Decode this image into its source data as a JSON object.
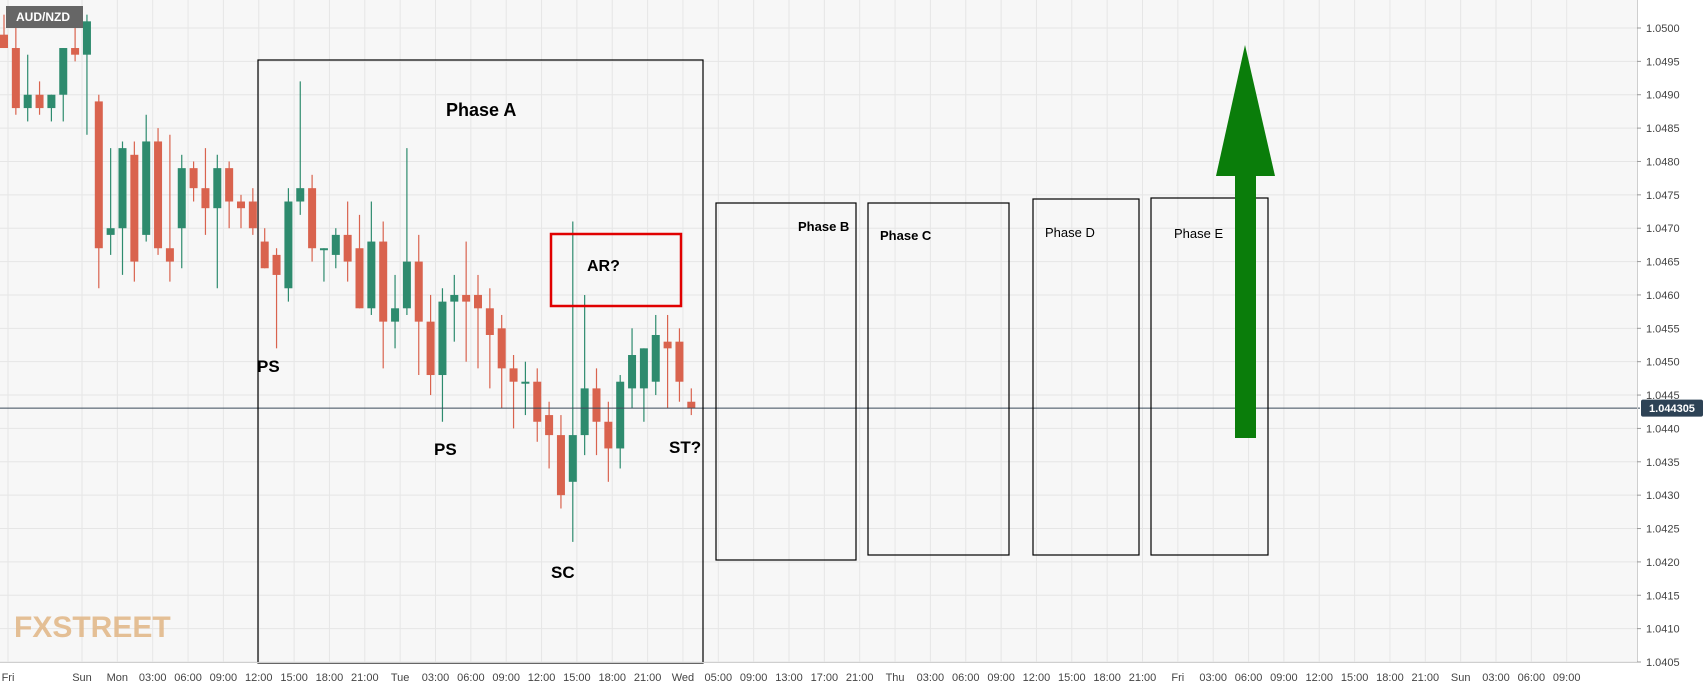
{
  "chart_data": {
    "type": "candlestick",
    "symbol": "AUD/NZD",
    "last_price": "1.044305",
    "y_range": [
      1.0405,
      1.0502
    ],
    "y_ticks": [
      "1.0500",
      "1.0495",
      "1.0490",
      "1.0485",
      "1.0480",
      "1.0475",
      "1.0470",
      "1.0465",
      "1.0460",
      "1.0455",
      "1.0450",
      "1.0445",
      "1.0440",
      "1.0435",
      "1.0430",
      "1.0425",
      "1.0420",
      "1.0415",
      "1.0410",
      "1.0405"
    ],
    "x_ticks": [
      "Fri",
      "Sun",
      "Mon",
      "03:00",
      "06:00",
      "09:00",
      "12:00",
      "15:00",
      "18:00",
      "21:00",
      "Tue",
      "03:00",
      "06:00",
      "09:00",
      "12:00",
      "15:00",
      "18:00",
      "21:00",
      "Wed",
      "05:00",
      "09:00",
      "13:00",
      "17:00",
      "21:00",
      "Thu",
      "03:00",
      "06:00",
      "09:00",
      "12:00",
      "15:00",
      "18:00",
      "21:00",
      "Fri",
      "03:00",
      "06:00",
      "09:00",
      "12:00",
      "15:00",
      "18:00",
      "21:00",
      "Sun",
      "03:00",
      "06:00",
      "09:00"
    ],
    "candles": [
      {
        "o": 1.0499,
        "h": 1.0502,
        "l": 1.0497,
        "c": 1.0497
      },
      {
        "o": 1.0497,
        "h": 1.0502,
        "l": 1.0487,
        "c": 1.0488
      },
      {
        "o": 1.0488,
        "h": 1.0496,
        "l": 1.0486,
        "c": 1.049
      },
      {
        "o": 1.049,
        "h": 1.0492,
        "l": 1.0487,
        "c": 1.0488
      },
      {
        "o": 1.0488,
        "h": 1.049,
        "l": 1.0486,
        "c": 1.049
      },
      {
        "o": 1.049,
        "h": 1.0497,
        "l": 1.0486,
        "c": 1.0497
      },
      {
        "o": 1.0497,
        "h": 1.0501,
        "l": 1.0495,
        "c": 1.0496
      },
      {
        "o": 1.0496,
        "h": 1.0502,
        "l": 1.0484,
        "c": 1.0501
      },
      {
        "o": 1.0489,
        "h": 1.049,
        "l": 1.0461,
        "c": 1.0467
      },
      {
        "o": 1.0469,
        "h": 1.0482,
        "l": 1.0466,
        "c": 1.047
      },
      {
        "o": 1.047,
        "h": 1.0483,
        "l": 1.0463,
        "c": 1.0482
      },
      {
        "o": 1.0481,
        "h": 1.0483,
        "l": 1.0462,
        "c": 1.0465
      },
      {
        "o": 1.0469,
        "h": 1.0487,
        "l": 1.0468,
        "c": 1.0483
      },
      {
        "o": 1.0483,
        "h": 1.0485,
        "l": 1.0466,
        "c": 1.0467
      },
      {
        "o": 1.0467,
        "h": 1.0484,
        "l": 1.0462,
        "c": 1.0465
      },
      {
        "o": 1.047,
        "h": 1.0481,
        "l": 1.0464,
        "c": 1.0479
      },
      {
        "o": 1.0479,
        "h": 1.048,
        "l": 1.0474,
        "c": 1.0476
      },
      {
        "o": 1.0476,
        "h": 1.0482,
        "l": 1.0469,
        "c": 1.0473
      },
      {
        "o": 1.0473,
        "h": 1.0481,
        "l": 1.0461,
        "c": 1.0479
      },
      {
        "o": 1.0479,
        "h": 1.048,
        "l": 1.047,
        "c": 1.0474
      },
      {
        "o": 1.0474,
        "h": 1.0475,
        "l": 1.047,
        "c": 1.0473
      },
      {
        "o": 1.0474,
        "h": 1.0476,
        "l": 1.0469,
        "c": 1.047
      },
      {
        "o": 1.0468,
        "h": 1.047,
        "l": 1.0464,
        "c": 1.0464
      },
      {
        "o": 1.0466,
        "h": 1.0467,
        "l": 1.0452,
        "c": 1.0463
      },
      {
        "o": 1.0461,
        "h": 1.0476,
        "l": 1.0459,
        "c": 1.0474
      },
      {
        "o": 1.0474,
        "h": 1.0492,
        "l": 1.0472,
        "c": 1.0476
      },
      {
        "o": 1.0476,
        "h": 1.0478,
        "l": 1.0465,
        "c": 1.0467
      },
      {
        "o": 1.0467,
        "h": 1.0467,
        "l": 1.0462,
        "c": 1.0467
      },
      {
        "o": 1.0466,
        "h": 1.047,
        "l": 1.0464,
        "c": 1.0469
      },
      {
        "o": 1.0469,
        "h": 1.0474,
        "l": 1.0462,
        "c": 1.0465
      },
      {
        "o": 1.0467,
        "h": 1.0472,
        "l": 1.0458,
        "c": 1.0458
      },
      {
        "o": 1.0458,
        "h": 1.0474,
        "l": 1.0457,
        "c": 1.0468
      },
      {
        "o": 1.0468,
        "h": 1.0471,
        "l": 1.0449,
        "c": 1.0456
      },
      {
        "o": 1.0456,
        "h": 1.0463,
        "l": 1.0452,
        "c": 1.0458
      },
      {
        "o": 1.0458,
        "h": 1.0482,
        "l": 1.0457,
        "c": 1.0465
      },
      {
        "o": 1.0465,
        "h": 1.0469,
        "l": 1.0448,
        "c": 1.0456
      },
      {
        "o": 1.0456,
        "h": 1.046,
        "l": 1.0445,
        "c": 1.0448
      },
      {
        "o": 1.0448,
        "h": 1.0461,
        "l": 1.0441,
        "c": 1.0459
      },
      {
        "o": 1.0459,
        "h": 1.0463,
        "l": 1.0453,
        "c": 1.046
      },
      {
        "o": 1.046,
        "h": 1.0468,
        "l": 1.045,
        "c": 1.0459
      },
      {
        "o": 1.046,
        "h": 1.0463,
        "l": 1.0449,
        "c": 1.0458
      },
      {
        "o": 1.0458,
        "h": 1.0461,
        "l": 1.0446,
        "c": 1.0454
      },
      {
        "o": 1.0455,
        "h": 1.0457,
        "l": 1.0443,
        "c": 1.0449
      },
      {
        "o": 1.0449,
        "h": 1.0451,
        "l": 1.044,
        "c": 1.0447
      },
      {
        "o": 1.0447,
        "h": 1.045,
        "l": 1.0442,
        "c": 1.0447
      },
      {
        "o": 1.0447,
        "h": 1.0449,
        "l": 1.0438,
        "c": 1.0441
      },
      {
        "o": 1.0442,
        "h": 1.0444,
        "l": 1.0434,
        "c": 1.0439
      },
      {
        "o": 1.0439,
        "h": 1.0442,
        "l": 1.0428,
        "c": 1.043
      },
      {
        "o": 1.0432,
        "h": 1.0471,
        "l": 1.0423,
        "c": 1.0439
      },
      {
        "o": 1.0439,
        "h": 1.046,
        "l": 1.0436,
        "c": 1.0446
      },
      {
        "o": 1.0446,
        "h": 1.0449,
        "l": 1.0436,
        "c": 1.0441
      },
      {
        "o": 1.0441,
        "h": 1.0444,
        "l": 1.0432,
        "c": 1.0437
      },
      {
        "o": 1.0437,
        "h": 1.0448,
        "l": 1.0434,
        "c": 1.0447
      },
      {
        "o": 1.0446,
        "h": 1.0455,
        "l": 1.0443,
        "c": 1.0451
      },
      {
        "o": 1.0446,
        "h": 1.0452,
        "l": 1.0441,
        "c": 1.0452
      },
      {
        "o": 1.0447,
        "h": 1.0457,
        "l": 1.0445,
        "c": 1.0454
      },
      {
        "o": 1.0453,
        "h": 1.0457,
        "l": 1.0443,
        "c": 1.0452
      },
      {
        "o": 1.0453,
        "h": 1.0455,
        "l": 1.0444,
        "c": 1.0447
      },
      {
        "o": 1.0444,
        "h": 1.0446,
        "l": 1.0442,
        "c": 1.0443
      }
    ],
    "annotations": {
      "phase_a": "Phase A",
      "phase_b": "Phase B",
      "phase_c": "Phase C",
      "phase_d": "Phase D",
      "phase_e": "Phase E",
      "ar": "AR?",
      "ps1": "PS",
      "ps2": "PS",
      "sc": "SC",
      "st": "ST?"
    },
    "colors": {
      "up": "#2e8b6e",
      "down": "#d9634e",
      "phase_box": "#000000",
      "ar_box": "#e00000",
      "arrow": "#0a7d0a",
      "price_line": "#3a4a5a",
      "price_tag_bg": "#2d4255",
      "grid": "#e6e6e6",
      "plot_bg": "#f7f7f7"
    }
  },
  "watermark": "FXSTREET"
}
